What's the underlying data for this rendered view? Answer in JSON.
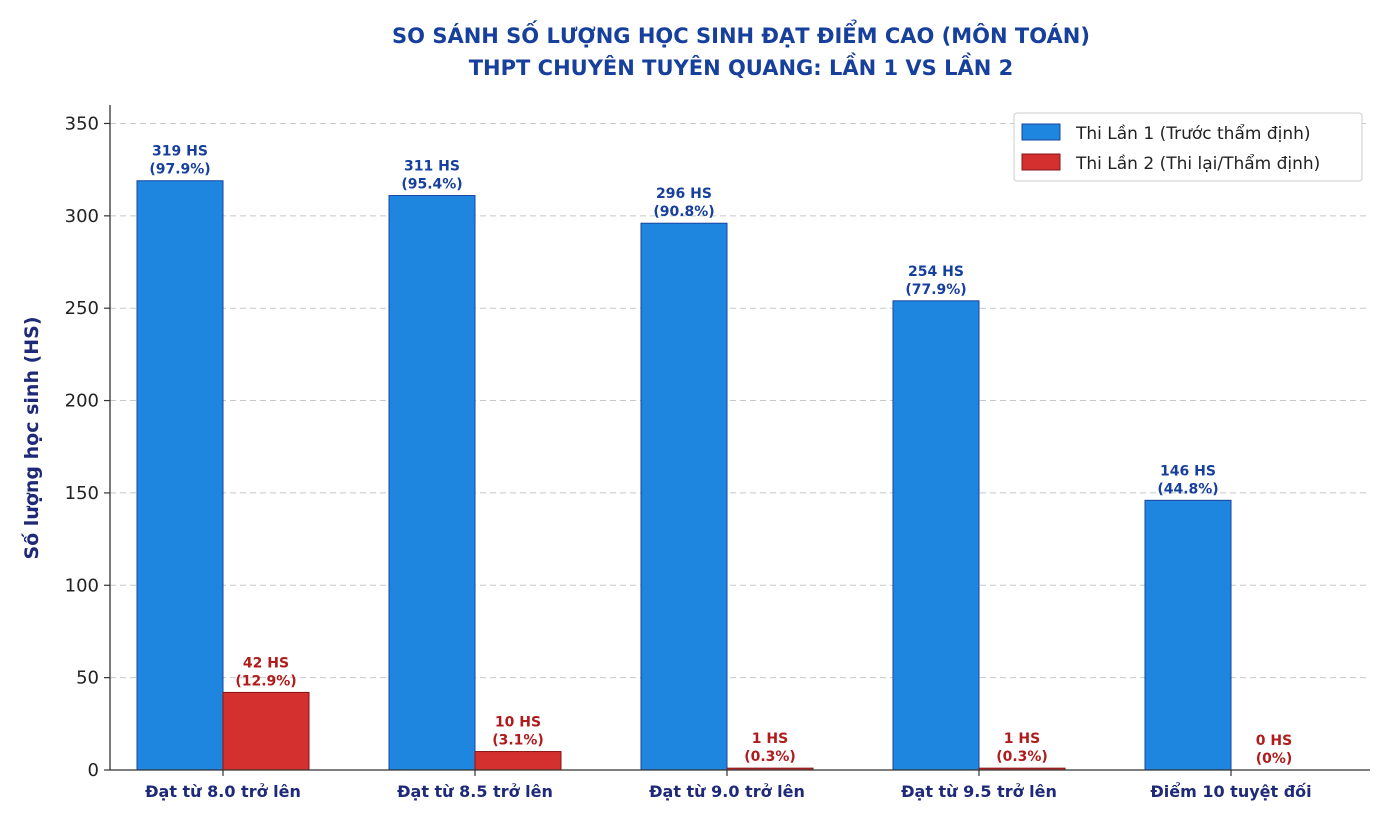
{
  "chart_data": {
    "type": "bar",
    "title_line1": "SO SÁNH SỐ LƯỢNG HỌC SINH ĐẠT ĐIỂM CAO (MÔN TOÁN)",
    "title_line2": "THPT CHUYÊN TUYÊN QUANG: LẦN 1 VS LẦN 2",
    "ylabel": "Số lượng học sinh (HS)",
    "xlabel": "",
    "ylim": [
      0,
      360
    ],
    "yticks": [
      0,
      50,
      100,
      150,
      200,
      250,
      300,
      350
    ],
    "grid": "horizontal dashed",
    "legend_position": "top-right",
    "categories": [
      "Đạt từ 8.0 trở lên",
      "Đạt từ 8.5 trở lên",
      "Đạt từ 9.0 trở lên",
      "Đạt từ 9.5 trở lên",
      "Điểm 10 tuyệt đối"
    ],
    "series": [
      {
        "name": "Thi Lần 1 (Trước thẩm định)",
        "color": "#1f86e0",
        "values": [
          319,
          311,
          296,
          254,
          146
        ],
        "labels_count": [
          "319 HS",
          "311 HS",
          "296 HS",
          "254 HS",
          "146 HS"
        ],
        "labels_pct": [
          "(97.9%)",
          "(95.4%)",
          "(90.8%)",
          "(77.9%)",
          "(44.8%)"
        ]
      },
      {
        "name": "Thi Lần 2 (Thi lại/Thẩm định)",
        "color": "#d3302f",
        "values": [
          42,
          10,
          1,
          1,
          0
        ],
        "labels_count": [
          "42 HS",
          "10 HS",
          "1 HS",
          "1 HS",
          "0 HS"
        ],
        "labels_pct": [
          "(12.9%)",
          "(3.1%)",
          "(0.3%)",
          "(0.3%)",
          "(0%)"
        ]
      }
    ]
  }
}
